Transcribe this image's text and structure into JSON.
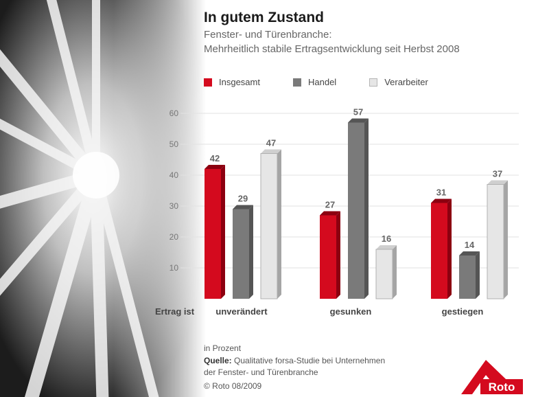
{
  "title": "In gutem Zustand",
  "subtitle_line1": "Fenster- und Türenbranche:",
  "subtitle_line2": "Mehrheitlich stabile Ertragsentwicklung seit Herbst 2008",
  "legend": [
    {
      "name": "Insgesamt",
      "color": "#d40a1e"
    },
    {
      "name": "Handel",
      "color": "#7a7a7a"
    },
    {
      "name": "Verarbeiter",
      "color": "#e6e6e6"
    }
  ],
  "footer": {
    "unit": "in Prozent",
    "source_label": "Quelle:",
    "source_text": "Qualitative forsa-Studie bei Unternehmen",
    "source_text2": "der Fenster- und Türenbranche",
    "copyright": "© Roto 08/2009"
  },
  "logo_text": "Roto",
  "chart_data": {
    "type": "bar",
    "title": "In gutem Zustand",
    "xlabel": "Ertrag ist",
    "ylabel": "",
    "ylim": [
      0,
      60
    ],
    "yticks": [
      10,
      20,
      30,
      40,
      50,
      60
    ],
    "grid": true,
    "legend_position": "top-left",
    "categories": [
      "unverändert",
      "gesunken",
      "gestiegen"
    ],
    "series": [
      {
        "name": "Insgesamt",
        "values": [
          42,
          27,
          31
        ],
        "color": "#d40a1e"
      },
      {
        "name": "Handel",
        "values": [
          29,
          57,
          14
        ],
        "color": "#7a7a7a"
      },
      {
        "name": "Verarbeiter",
        "values": [
          47,
          16,
          37
        ],
        "color": "#e6e6e6"
      }
    ]
  }
}
